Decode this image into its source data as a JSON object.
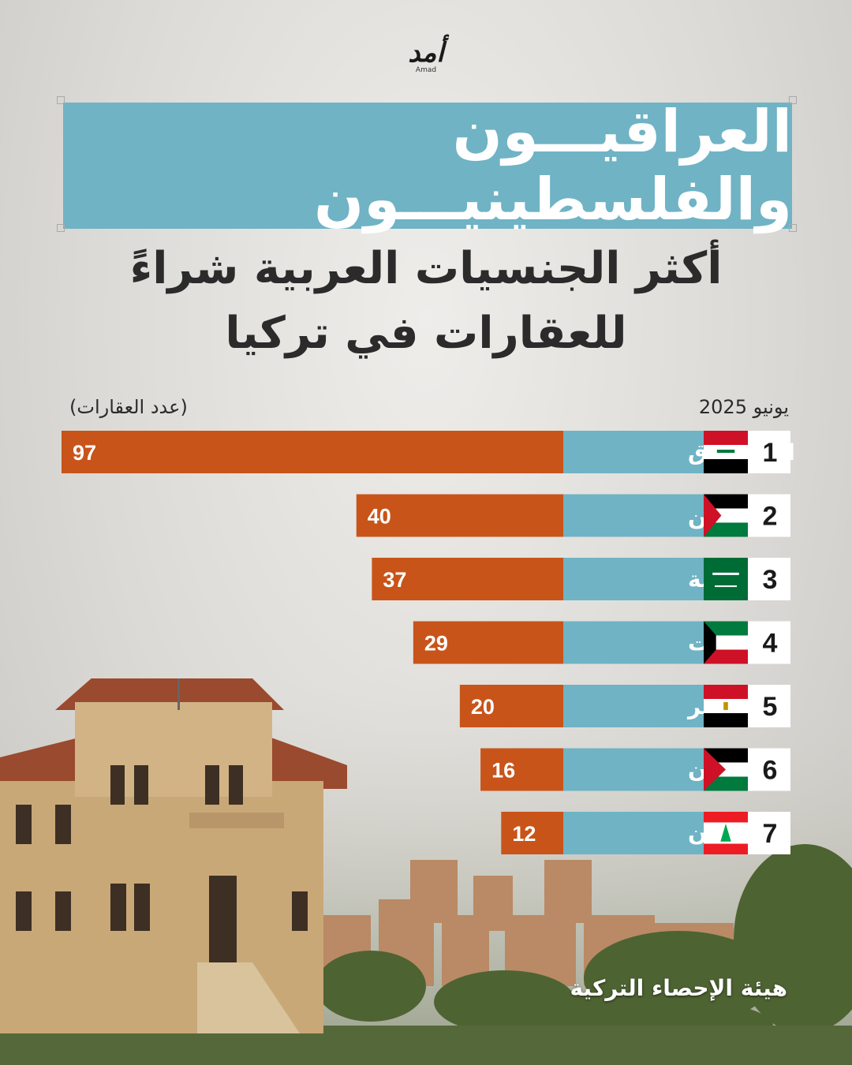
{
  "logo": {
    "main": "أمد",
    "sub": "Amad"
  },
  "title": "العراقيـــون والفلسطينيـــون",
  "subtitle_line1": "أكثر الجنسيات العربية شراءً",
  "subtitle_line2": "للعقارات في تركيا",
  "unit_note": "(عدد العقارات)",
  "period": "يونيو 2025",
  "source": "هيئة الإحصاء التركية",
  "colors": {
    "bar": "#c8541a",
    "label_bg": "#6fb3c5",
    "rank_bg": "#ffffff",
    "title_bg": "#6fb3c5"
  },
  "chart_data": {
    "type": "bar",
    "orientation": "horizontal",
    "categories": [
      "العـــــراق",
      "فلسطين",
      "السعودية",
      "الكويـــت",
      "مصـــر",
      "الاردن",
      "لبنـــان"
    ],
    "ranks": [
      "1",
      "2",
      "3",
      "4",
      "5",
      "6",
      "7"
    ],
    "values": [
      97,
      40,
      37,
      29,
      20,
      16,
      12
    ],
    "flags": [
      "iraq",
      "palestine",
      "saudi-arabia",
      "kuwait",
      "egypt",
      "jordan",
      "lebanon"
    ],
    "xlim": [
      0,
      97
    ]
  }
}
